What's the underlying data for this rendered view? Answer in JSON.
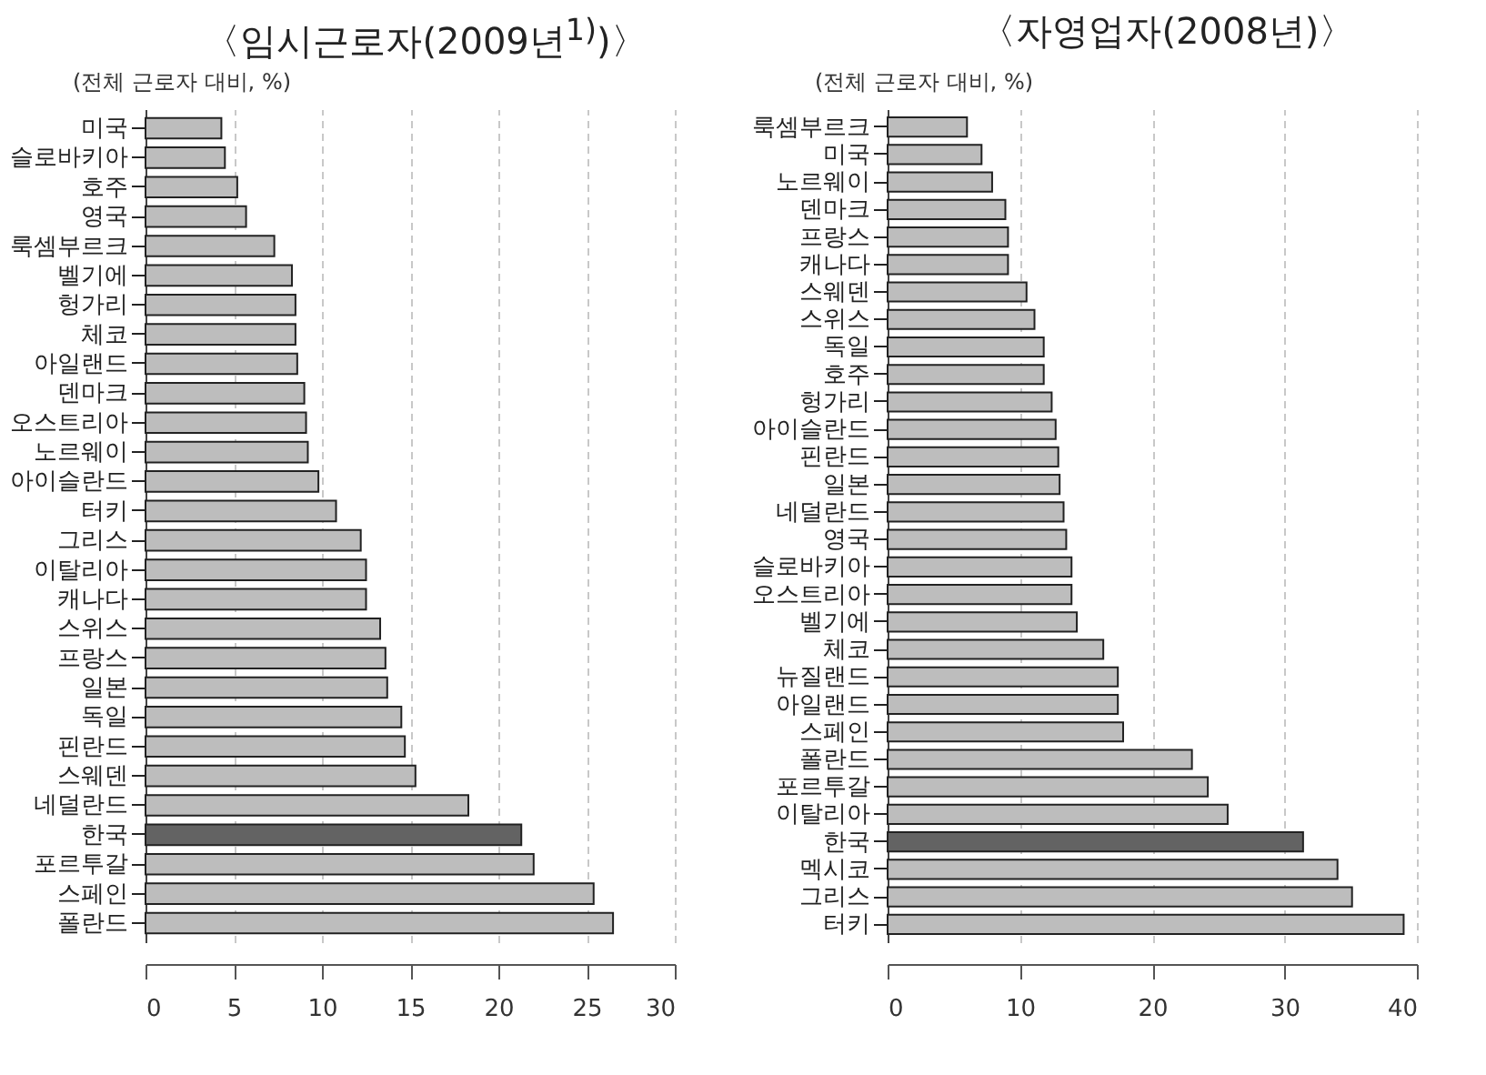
{
  "chart_data": [
    {
      "type": "bar",
      "orientation": "horizontal",
      "title": "〈임시근로자(2009년$^{1)}$)〉",
      "subtitle": "(전체 근로자 대비, %)",
      "categories": [
        "미국",
        "슬로바키아",
        "호주",
        "영국",
        "룩셈부르크",
        "벨기에",
        "헝가리",
        "체코",
        "아일랜드",
        "덴마크",
        "오스트리아",
        "노르웨이",
        "아이슬란드",
        "터키",
        "그리스",
        "이탈리아",
        "캐나다",
        "스위스",
        "프랑스",
        "일본",
        "독일",
        "핀란드",
        "스웨덴",
        "네덜란드",
        "한국",
        "포르투갈",
        "스페인",
        "폴란드"
      ],
      "values": [
        4.3,
        4.5,
        5.2,
        5.7,
        7.3,
        8.3,
        8.5,
        8.5,
        8.6,
        9.0,
        9.1,
        9.2,
        9.8,
        10.8,
        12.2,
        12.5,
        12.5,
        13.3,
        13.6,
        13.7,
        14.5,
        14.7,
        15.3,
        18.3,
        21.3,
        22.0,
        25.4,
        26.5
      ],
      "colors": [
        "#bdbdbd",
        "#bdbdbd",
        "#bdbdbd",
        "#bdbdbd",
        "#bdbdbd",
        "#bdbdbd",
        "#bdbdbd",
        "#bdbdbd",
        "#bdbdbd",
        "#bdbdbd",
        "#bdbdbd",
        "#bdbdbd",
        "#bdbdbd",
        "#bdbdbd",
        "#bdbdbd",
        "#bdbdbd",
        "#bdbdbd",
        "#bdbdbd",
        "#bdbdbd",
        "#bdbdbd",
        "#bdbdbd",
        "#bdbdbd",
        "#bdbdbd",
        "#bdbdbd",
        "#636363",
        "#bdbdbd",
        "#bdbdbd",
        "#bdbdbd"
      ],
      "xlim": [
        0,
        30
      ],
      "xticks": [
        0,
        5,
        10,
        15,
        20,
        25,
        30
      ],
      "grid": "x"
    },
    {
      "type": "bar",
      "orientation": "horizontal",
      "title": "〈자영업자(2008년)〉",
      "subtitle": "(전체 근로자 대비, %)",
      "categories": [
        "룩셈부르크",
        "미국",
        "노르웨이",
        "덴마크",
        "프랑스",
        "캐나다",
        "스웨덴",
        "스위스",
        "독일",
        "호주",
        "헝가리",
        "아이슬란드",
        "핀란드",
        "일본",
        "네덜란드",
        "영국",
        "슬로바키아",
        "오스트리아",
        "벨기에",
        "체코",
        "뉴질랜드",
        "아일랜드",
        "스페인",
        "폴란드",
        "포르투갈",
        "이탈리아",
        "한국",
        "멕시코",
        "그리스",
        "터키"
      ],
      "values": [
        6.0,
        7.1,
        7.9,
        8.9,
        9.1,
        9.1,
        10.5,
        11.1,
        11.8,
        11.8,
        12.4,
        12.7,
        12.9,
        13.0,
        13.3,
        13.5,
        13.9,
        13.9,
        14.3,
        16.3,
        17.4,
        17.4,
        17.8,
        23.0,
        24.2,
        25.7,
        31.4,
        34.0,
        35.1,
        39.0
      ],
      "colors": [
        "#bdbdbd",
        "#bdbdbd",
        "#bdbdbd",
        "#bdbdbd",
        "#bdbdbd",
        "#bdbdbd",
        "#bdbdbd",
        "#bdbdbd",
        "#bdbdbd",
        "#bdbdbd",
        "#bdbdbd",
        "#bdbdbd",
        "#bdbdbd",
        "#bdbdbd",
        "#bdbdbd",
        "#bdbdbd",
        "#bdbdbd",
        "#bdbdbd",
        "#bdbdbd",
        "#bdbdbd",
        "#bdbdbd",
        "#bdbdbd",
        "#bdbdbd",
        "#bdbdbd",
        "#bdbdbd",
        "#bdbdbd",
        "#636363",
        "#bdbdbd",
        "#bdbdbd",
        "#bdbdbd"
      ],
      "xlim": [
        0,
        40
      ],
      "xticks": [
        0,
        10,
        20,
        30,
        40
      ],
      "grid": "x"
    }
  ]
}
